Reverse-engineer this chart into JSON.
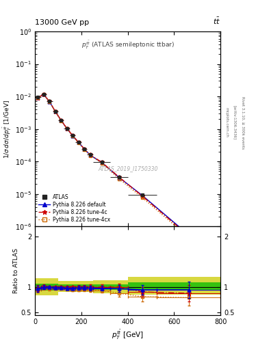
{
  "title_left": "13000 GeV pp",
  "title_right": "tt̅",
  "panel_title": "$p_T^{\\tilde{t}bar}$ (ATLAS semileptonic ttbar)",
  "watermark": "ATLAS_2019_I1750330",
  "right_label_top": "Rivet 3.1.10, ≥ 300k events",
  "right_label_mid": "[arXiv:1306.3436]",
  "right_label_bot": "mcplots.cern.ch",
  "ylabel_main": "$1/\\sigma\\,d\\sigma/dp_T^{t\\bar{t}}$ [1/GeV]",
  "ylabel_ratio": "Ratio to ATLAS",
  "xlabel": "$p_T^{t\\bar{t}}$ [GeV]",
  "xlim": [
    0,
    800
  ],
  "ylim_main": [
    1e-06,
    1.0
  ],
  "ylim_ratio": [
    0.45,
    2.2
  ],
  "x_centers": [
    12.5,
    37.5,
    62.5,
    87.5,
    112.5,
    137.5,
    162.5,
    187.5,
    212.5,
    237.5,
    287.5,
    362.5,
    462.5,
    662.5
  ],
  "x_edges": [
    0,
    25,
    50,
    75,
    100,
    125,
    150,
    175,
    200,
    225,
    250,
    325,
    400,
    525,
    800
  ],
  "atlas_y": [
    0.0095,
    0.0115,
    0.007,
    0.0035,
    0.00185,
    0.00105,
    0.00063,
    0.00039,
    0.000245,
    0.00016,
    9.5e-05,
    3.3e-05,
    9.5e-06,
    5.8e-07
  ],
  "atlas_yerr": [
    0.0005,
    0.00055,
    0.0004,
    0.0002,
    0.00011,
    6.5e-05,
    4e-05,
    2.5e-05,
    1.5e-05,
    1e-05,
    6e-06,
    2.5e-06,
    8e-07,
    8e-08
  ],
  "py_default_y": [
    0.0092,
    0.0115,
    0.0069,
    0.00345,
    0.00183,
    0.00103,
    0.000615,
    0.000385,
    0.000242,
    0.000157,
    9.3e-05,
    3.2e-05,
    9e-06,
    5.5e-07
  ],
  "py_4c_y": [
    0.0093,
    0.0116,
    0.007,
    0.00348,
    0.00185,
    0.00105,
    0.00063,
    0.00039,
    0.000245,
    0.00016,
    9.5e-05,
    3.3e-05,
    8.6e-06,
    5.1e-07
  ],
  "py_4cx_y": [
    0.009,
    0.0114,
    0.0068,
    0.0034,
    0.0018,
    0.00101,
    0.000599,
    0.000371,
    0.000235,
    0.000152,
    8.9e-05,
    2.9e-05,
    7.7e-06,
    4.6e-07
  ],
  "ratio_default": [
    0.97,
    1.0,
    1.0,
    0.985,
    0.99,
    0.98,
    0.977,
    0.987,
    0.988,
    0.981,
    0.979,
    0.97,
    0.947,
    0.948
  ],
  "ratio_4c": [
    0.98,
    1.01,
    1.0,
    1.0,
    1.0,
    1.0,
    1.0,
    1.0,
    1.0,
    1.0,
    1.0,
    1.0,
    0.906,
    0.879
  ],
  "ratio_4cx": [
    0.95,
    0.99,
    0.97,
    0.971,
    0.973,
    0.962,
    0.951,
    0.952,
    0.959,
    0.95,
    0.937,
    0.879,
    0.811,
    0.793
  ],
  "ratio_default_err": [
    0.06,
    0.04,
    0.03,
    0.03,
    0.03,
    0.03,
    0.03,
    0.035,
    0.04,
    0.05,
    0.05,
    0.07,
    0.1,
    0.16
  ],
  "ratio_4c_err": [
    0.06,
    0.04,
    0.03,
    0.03,
    0.03,
    0.03,
    0.03,
    0.035,
    0.04,
    0.05,
    0.05,
    0.07,
    0.1,
    0.16
  ],
  "ratio_4cx_err": [
    0.06,
    0.04,
    0.03,
    0.03,
    0.03,
    0.03,
    0.03,
    0.035,
    0.04,
    0.05,
    0.05,
    0.07,
    0.1,
    0.16
  ],
  "band_x": [
    0,
    100,
    250,
    400,
    800
  ],
  "band_green_lo": [
    0.93,
    0.96,
    0.95,
    0.95,
    0.95
  ],
  "band_green_hi": [
    1.07,
    1.05,
    1.06,
    1.1,
    1.1
  ],
  "band_yellow_lo": [
    0.84,
    0.9,
    0.88,
    0.85,
    0.85
  ],
  "band_yellow_hi": [
    1.17,
    1.12,
    1.14,
    1.2,
    1.2
  ],
  "color_atlas": "#222222",
  "color_default": "#0000cc",
  "color_4c": "#cc0000",
  "color_4cx": "#cc6600",
  "color_green": "#00bb00",
  "color_yellow": "#cccc00",
  "legend_entries": [
    "ATLAS",
    "Pythia 8.226 default",
    "Pythia 8.226 tune-4c",
    "Pythia 8.226 tune-4cx"
  ]
}
